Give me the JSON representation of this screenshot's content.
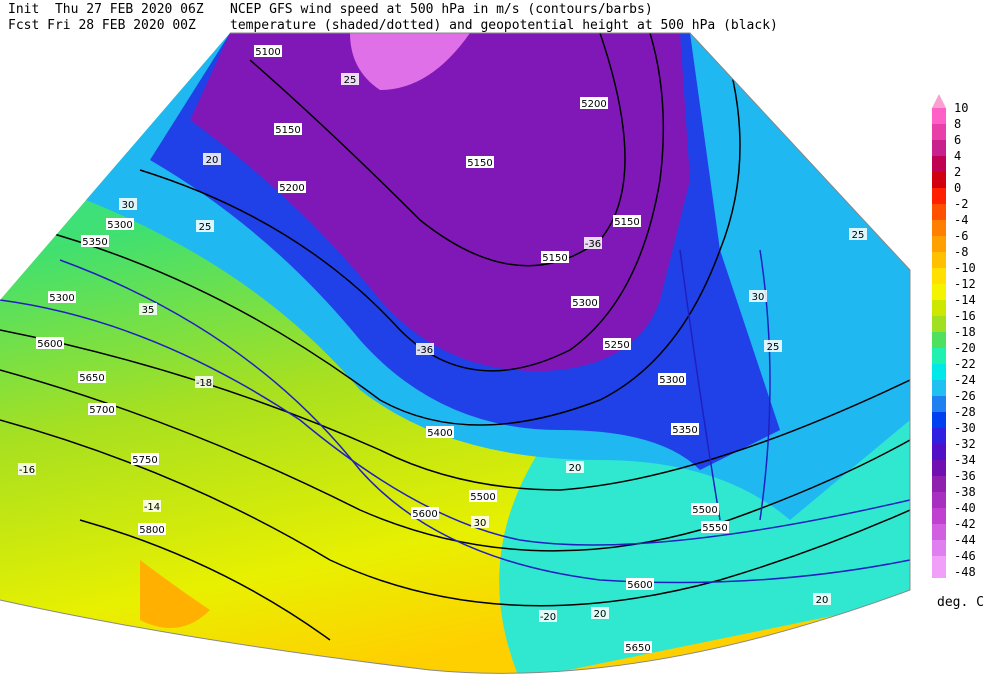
{
  "header": {
    "init": "Init  Thu 27 FEB 2020 06Z",
    "forecast": "Fcst Fri 28 FEB 2020 00Z",
    "title_line1": "NCEP GFS wind speed at 500 hPa in m/s (contours/barbs)",
    "title_line2": "temperature (shaded/dotted) and geopotential height at 500 hPa (black)"
  },
  "colorbar": {
    "levels": [
      10,
      8,
      6,
      4,
      2,
      0,
      -2,
      -4,
      -6,
      -8,
      -10,
      -12,
      -14,
      -16,
      -18,
      -20,
      -22,
      -24,
      -26,
      -28,
      -30,
      -32,
      -34,
      -36,
      -38,
      -40,
      -42,
      -44,
      -46,
      -48
    ],
    "colors": [
      "#f8a0d0",
      "#ff60c8",
      "#e840a8",
      "#c8208c",
      "#c00050",
      "#d00010",
      "#ff2000",
      "#ff5000",
      "#ff8000",
      "#ffa000",
      "#ffc000",
      "#ffe000",
      "#f4f400",
      "#cce800",
      "#a0e020",
      "#50e060",
      "#20f0b0",
      "#00e8e8",
      "#20c0f0",
      "#2080f0",
      "#0040f0",
      "#3020e0",
      "#5010c8",
      "#7010b0",
      "#9020b0",
      "#a830c0",
      "#c040d0",
      "#d060e0",
      "#e080f0",
      "#f0a0f8"
    ],
    "unit": "deg. C"
  },
  "map_labels": [
    5100,
    5150,
    5200,
    5300,
    5350,
    5300,
    5600,
    5650,
    5700,
    5750,
    5800,
    5150,
    5150,
    5150,
    5200,
    5300,
    5250,
    5300,
    5350,
    5400,
    5500,
    5600,
    5500,
    5550,
    5600,
    5650,
    20,
    25,
    25,
    30,
    35,
    20,
    30,
    20,
    -20,
    -18,
    -16,
    -14,
    -36,
    -36,
    25,
    25,
    30,
    20
  ]
}
